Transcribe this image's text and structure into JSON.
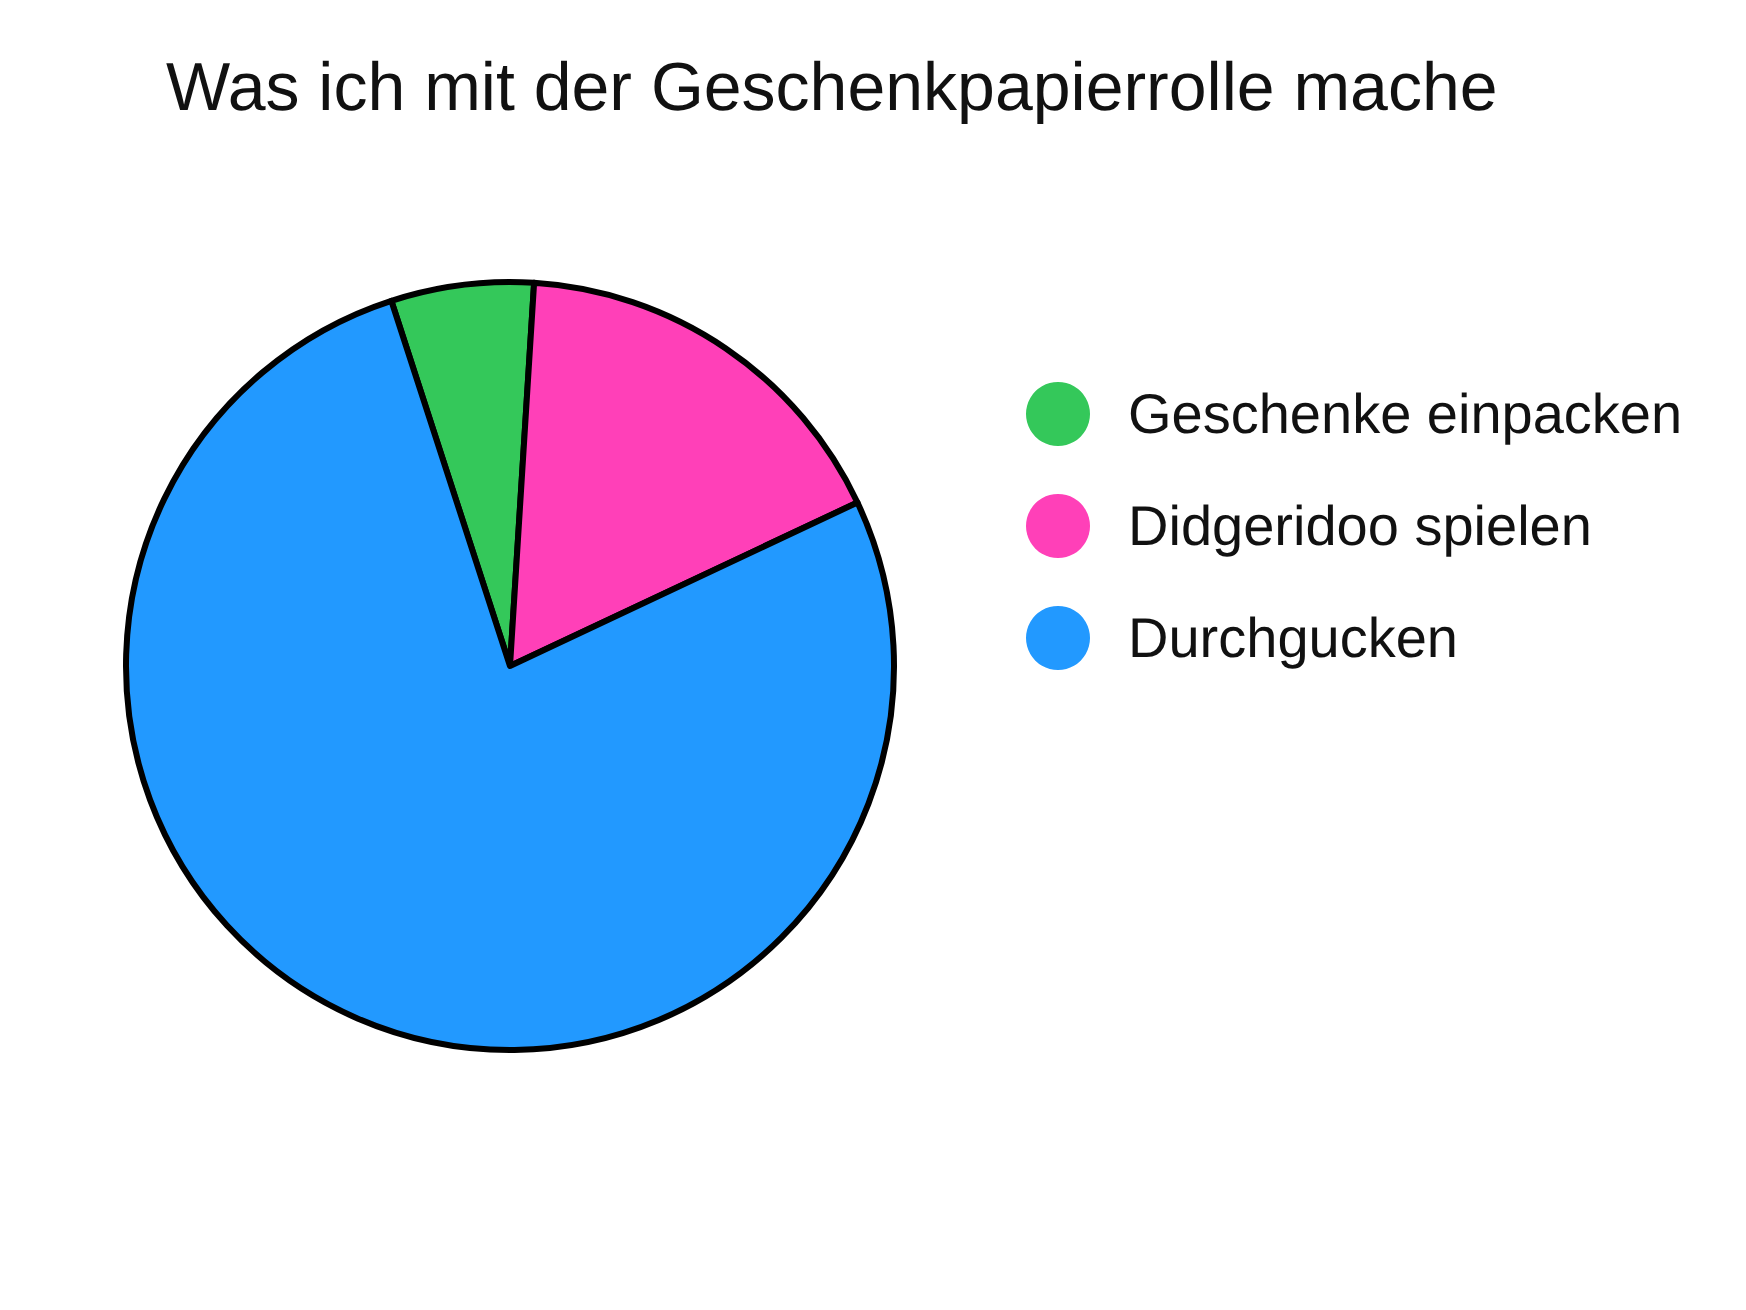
{
  "chart_data": {
    "type": "pie",
    "title": "Was ich mit der Geschenkpapierrolle mache",
    "categories": [
      "Geschenke einpacken",
      "Didgeridoo spielen",
      "Durchgucken"
    ],
    "values": [
      6,
      17,
      77
    ],
    "colors": [
      "#34c85a",
      "#ff40b8",
      "#2299ff"
    ],
    "legend": "right"
  }
}
